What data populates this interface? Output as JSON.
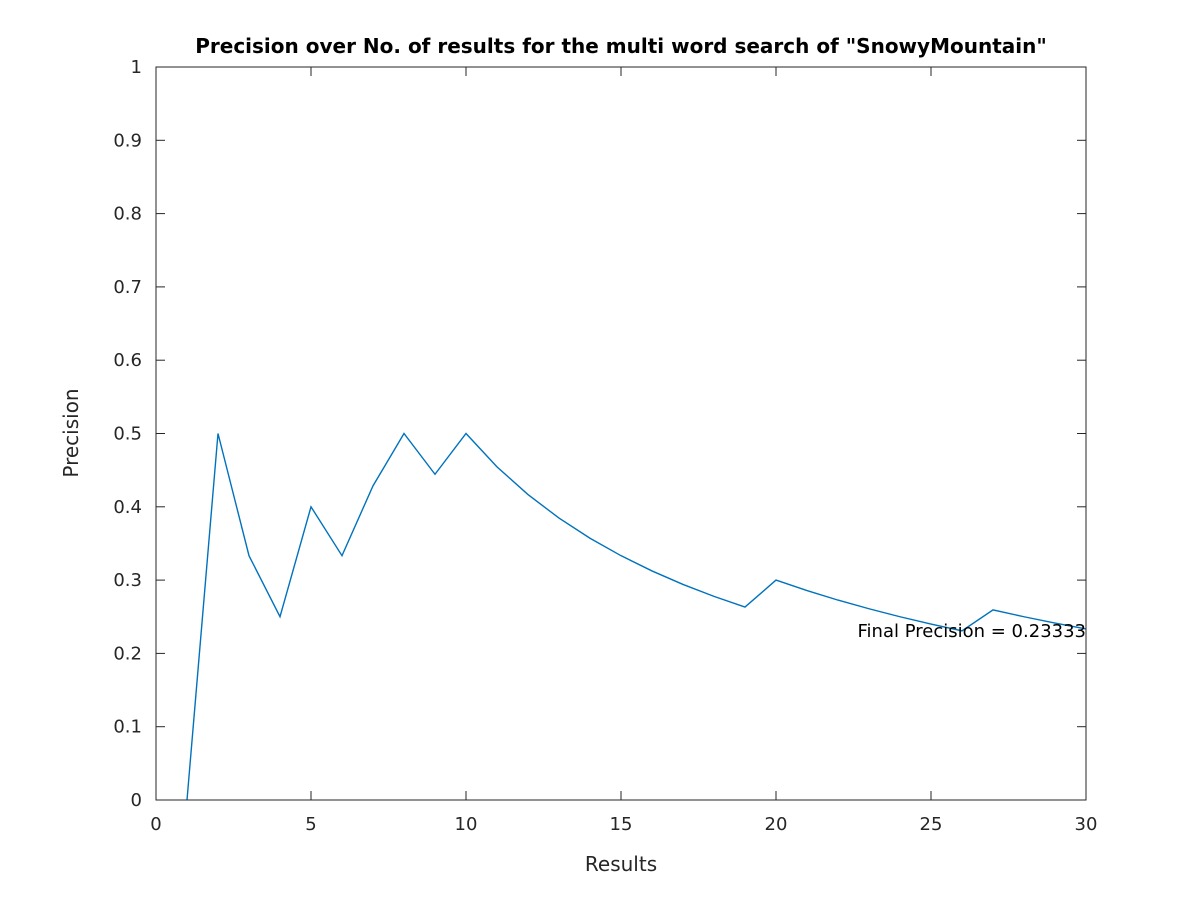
{
  "chart_data": {
    "type": "line",
    "title": "Precision over No. of results for the multi word search of \"SnowyMountain\"",
    "xlabel": "Results",
    "ylabel": "Precision",
    "xlim": [
      0,
      30
    ],
    "ylim": [
      0,
      1
    ],
    "xticks": [
      0,
      5,
      10,
      15,
      20,
      25,
      30
    ],
    "xtick_labels": [
      "0",
      "5",
      "10",
      "15",
      "20",
      "25",
      "30"
    ],
    "yticks": [
      0,
      0.1,
      0.2,
      0.3,
      0.4,
      0.5,
      0.6,
      0.7,
      0.8,
      0.9,
      1
    ],
    "ytick_labels": [
      "0",
      "0.1",
      "0.2",
      "0.3",
      "0.4",
      "0.5",
      "0.6",
      "0.7",
      "0.8",
      "0.9",
      "1"
    ],
    "grid": false,
    "series": [
      {
        "color": "#0072bd",
        "x": [
          1,
          2,
          3,
          4,
          5,
          6,
          7,
          8,
          9,
          10,
          11,
          12,
          13,
          14,
          15,
          16,
          17,
          18,
          19,
          20,
          21,
          22,
          23,
          24,
          25,
          26,
          27,
          28,
          29,
          30
        ],
        "y": [
          0,
          0.5,
          0.3333,
          0.25,
          0.4,
          0.3333,
          0.4286,
          0.5,
          0.4444,
          0.5,
          0.4545,
          0.4167,
          0.3846,
          0.3571,
          0.3333,
          0.3125,
          0.2941,
          0.2778,
          0.2632,
          0.3,
          0.2857,
          0.2727,
          0.2609,
          0.25,
          0.24,
          0.2308,
          0.2593,
          0.25,
          0.2414,
          0.2333
        ]
      }
    ],
    "annotation": {
      "text": "Final Precision = 0.23333",
      "x": 30,
      "y": 0.2333
    }
  }
}
